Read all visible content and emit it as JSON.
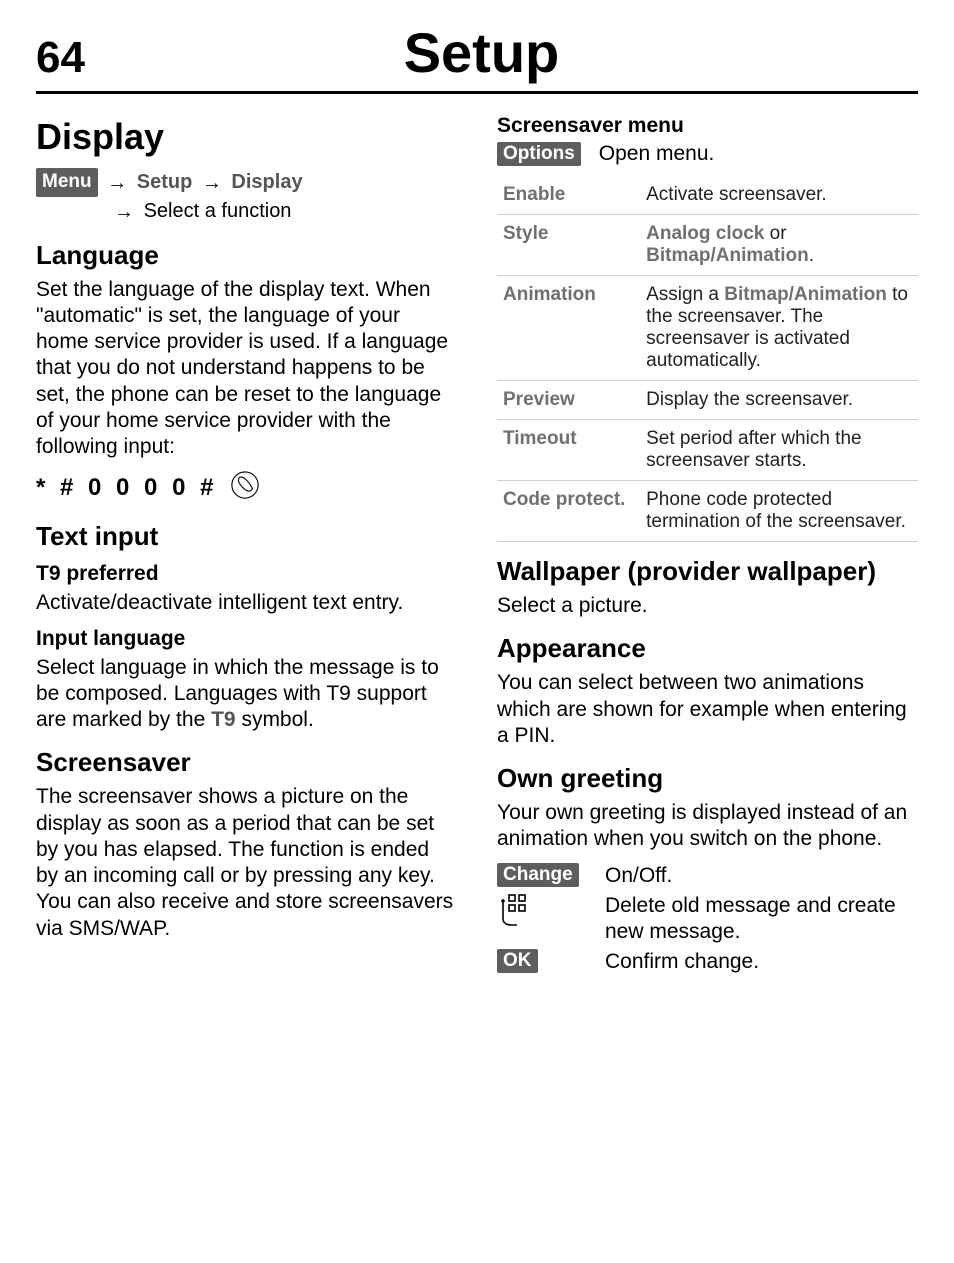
{
  "header": {
    "page_number": "64",
    "title": "Setup"
  },
  "left": {
    "display_heading": "Display",
    "menu_softkey": "Menu",
    "menu_path_setup": "Setup",
    "menu_path_display": "Display",
    "menu_path_select": "Select a function",
    "language_heading": "Language",
    "language_body": "Set the language of the display text. When \"automatic\" is set, the language of your home service provider is used. If a language that you do not understand happens to be set, the phone can be reset to the language of your home service provider with the following input:",
    "reset_code": "* # 0 0 0 0 #",
    "textinput_heading": "Text input",
    "t9pref_heading": "T9 preferred",
    "t9pref_body": "Activate/deactivate intelligent text entry.",
    "inputlang_heading": "Input language",
    "inputlang_body_pre": "Select language in which the message is to be composed. Languages with T9 support are marked by the ",
    "inputlang_body_t9": "T9",
    "inputlang_body_post": " symbol.",
    "screensaver_heading": "Screensaver",
    "screensaver_body": "The screensaver shows a picture on the display as soon as a period that can be set by you has elapsed. The function is ended by an incoming call or by pressing any key. You can also receive and store screensavers via SMS/WAP."
  },
  "right": {
    "ssmenu_heading": "Screensaver menu",
    "options_softkey": "Options",
    "options_text": "Open menu.",
    "table": [
      {
        "k": "Enable",
        "v_plain": "Activate screensaver."
      },
      {
        "k": "Style",
        "v_html": "<span class=\"emb\">Analog clock</span> or <span class=\"emb\">Bitmap/Animation</span>."
      },
      {
        "k": "Animation",
        "v_html": "Assign a <span class=\"emb\">Bitmap/Animation</span> to the screensaver. The screensaver is activated automatically."
      },
      {
        "k": "Preview",
        "v_plain": "Display the screensaver."
      },
      {
        "k": "Timeout",
        "v_plain": "Set period after which the screensaver starts."
      },
      {
        "k": "Code protect.",
        "v_plain": "Phone code protected termination of the screensaver."
      }
    ],
    "wallpaper_heading": "Wallpaper (provider wallpaper)",
    "wallpaper_body": "Select a picture.",
    "appearance_heading": "Appearance",
    "appearance_body": "You can select between two animations which are shown for example when entering a PIN.",
    "owngreet_heading": "Own greeting",
    "owngreet_body": "Your own greeting is displayed instead of an animation when you switch on the phone.",
    "change_softkey": "Change",
    "change_text": "On/Off.",
    "keypad_text": "Delete old message and create new message.",
    "ok_softkey": "OK",
    "ok_text": "Confirm change."
  },
  "icons": {
    "phone_svg_title": "phone-send-icon",
    "keypad_svg_title": "keypad-icon"
  }
}
